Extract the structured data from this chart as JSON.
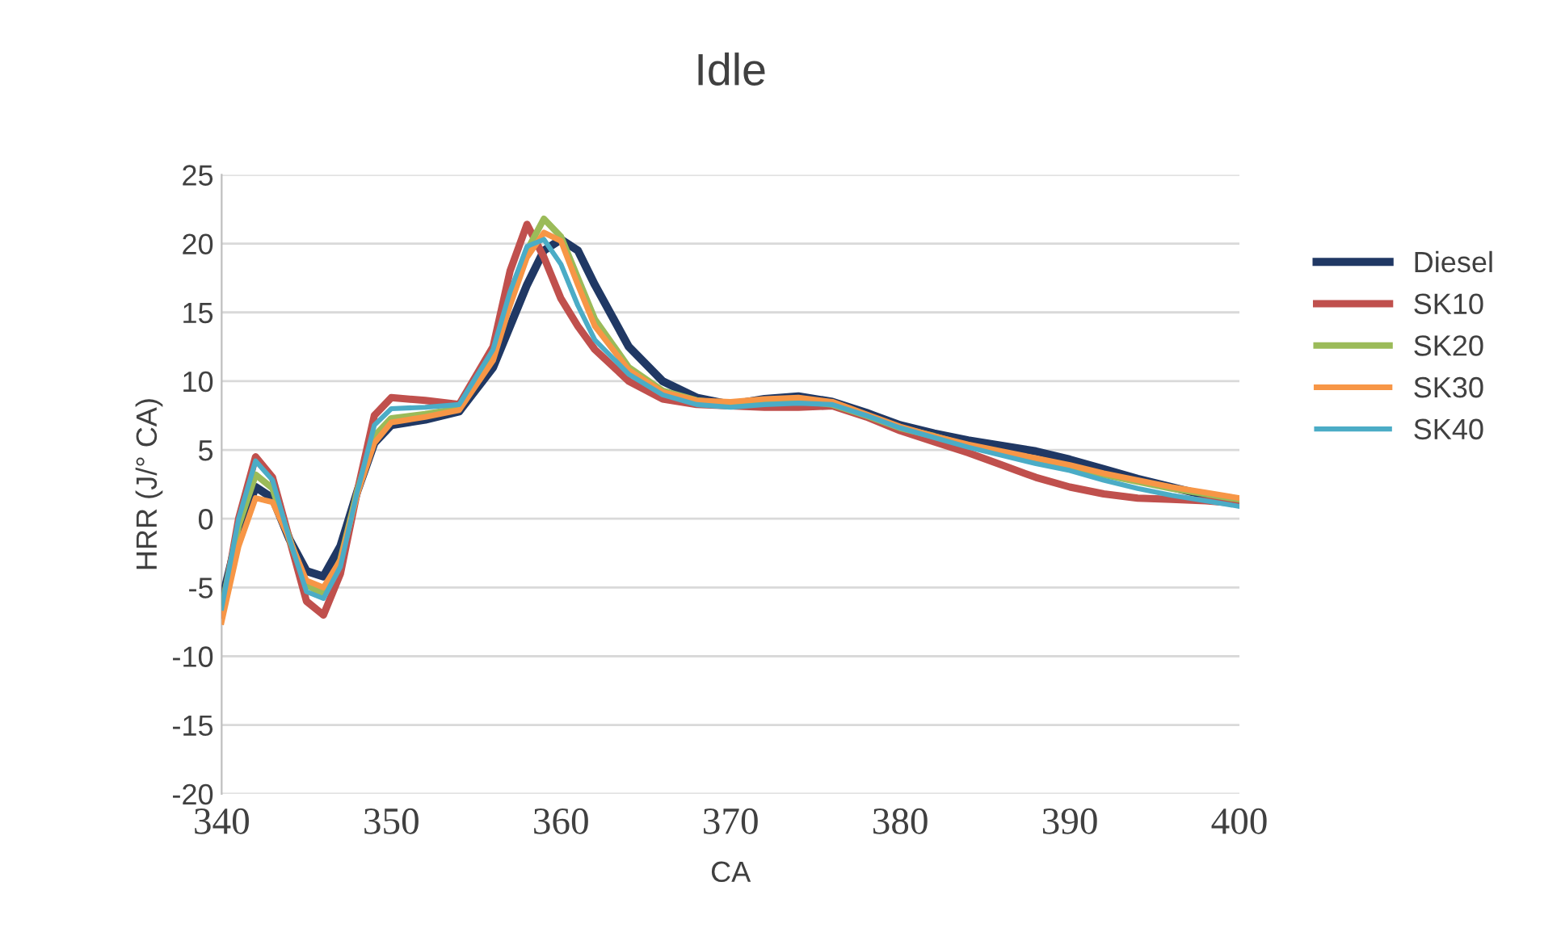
{
  "chart_data": {
    "type": "line",
    "title": "Idle",
    "xlabel": "CA",
    "ylabel": "HRR (J/° CA)",
    "x": [
      340,
      341,
      342,
      343,
      344,
      345,
      346,
      347,
      348,
      349,
      350,
      352,
      354,
      356,
      357,
      358,
      359,
      360,
      361,
      362,
      364,
      366,
      368,
      370,
      372,
      374,
      376,
      378,
      380,
      382,
      384,
      386,
      388,
      390,
      392,
      394,
      396,
      398,
      400
    ],
    "series": [
      {
        "name": "Diesel",
        "color": "#203864",
        "values": [
          -6,
          -1,
          2.3,
          1.5,
          -1.5,
          -3.8,
          -4.2,
          -2,
          2,
          5.5,
          6.8,
          7.2,
          7.8,
          11,
          14,
          17,
          19.5,
          20.3,
          19.5,
          17,
          12.5,
          10,
          8.8,
          8.3,
          8.7,
          8.9,
          8.5,
          7.7,
          6.8,
          6.2,
          5.7,
          5.3,
          4.9,
          4.3,
          3.6,
          2.9,
          2.3,
          1.7,
          1.1
        ]
      },
      {
        "name": "SK10",
        "color": "#c0504d",
        "values": [
          -7,
          0,
          4.5,
          3,
          -1.5,
          -6,
          -7,
          -4,
          2,
          7.5,
          8.8,
          8.6,
          8.3,
          12.5,
          18,
          21.4,
          19,
          16,
          14,
          12.3,
          10,
          8.7,
          8.3,
          8.2,
          8.1,
          8.1,
          8.2,
          7.4,
          6.4,
          5.6,
          4.8,
          3.9,
          3,
          2.3,
          1.8,
          1.5,
          1.4,
          1.3,
          1.1
        ]
      },
      {
        "name": "SK20",
        "color": "#9bbb59",
        "values": [
          -6.5,
          -0.5,
          3.2,
          2.2,
          -1.5,
          -4.8,
          -5.5,
          -3,
          2,
          6,
          7.3,
          7.6,
          8,
          12,
          16,
          19.5,
          21.8,
          20.5,
          17.5,
          14.5,
          11,
          9.3,
          8.6,
          8.3,
          8.5,
          8.6,
          8.3,
          7.5,
          6.6,
          6,
          5.3,
          4.8,
          4.3,
          3.8,
          3.2,
          2.7,
          2.2,
          1.8,
          1.4
        ]
      },
      {
        "name": "SK30",
        "color": "#f79646",
        "values": [
          -7.5,
          -2,
          1.5,
          1.2,
          -1.5,
          -4.5,
          -5,
          -3,
          1.8,
          5.5,
          7,
          7.4,
          7.9,
          11.5,
          15.5,
          19,
          20.8,
          20.2,
          17,
          14,
          10.8,
          9.2,
          8.6,
          8.5,
          8.7,
          8.8,
          8.5,
          7.6,
          6.7,
          6,
          5.4,
          4.9,
          4.4,
          3.9,
          3.3,
          2.8,
          2.3,
          1.9,
          1.5
        ]
      },
      {
        "name": "SK40",
        "color": "#4bacc6",
        "values": [
          -6.5,
          0,
          4.2,
          2.8,
          -1.5,
          -5.3,
          -5.8,
          -3.5,
          2,
          6.8,
          8,
          8.1,
          8.3,
          12.3,
          16.5,
          19.8,
          20.3,
          18.5,
          15.5,
          13,
          10.5,
          9,
          8.3,
          8.1,
          8.3,
          8.4,
          8.3,
          7.5,
          6.6,
          5.9,
          5.2,
          4.6,
          4,
          3.5,
          2.8,
          2.2,
          1.7,
          1.3,
          0.9
        ]
      }
    ],
    "xlim": [
      340,
      400
    ],
    "xticks": [
      340,
      350,
      360,
      370,
      380,
      390,
      400
    ],
    "ylim": [
      -20,
      25
    ],
    "yticks": [
      -20,
      -15,
      -10,
      -5,
      0,
      5,
      10,
      15,
      20,
      25
    ],
    "grid": "y",
    "legend": "right",
    "marker": "none",
    "line_style": "solid"
  }
}
